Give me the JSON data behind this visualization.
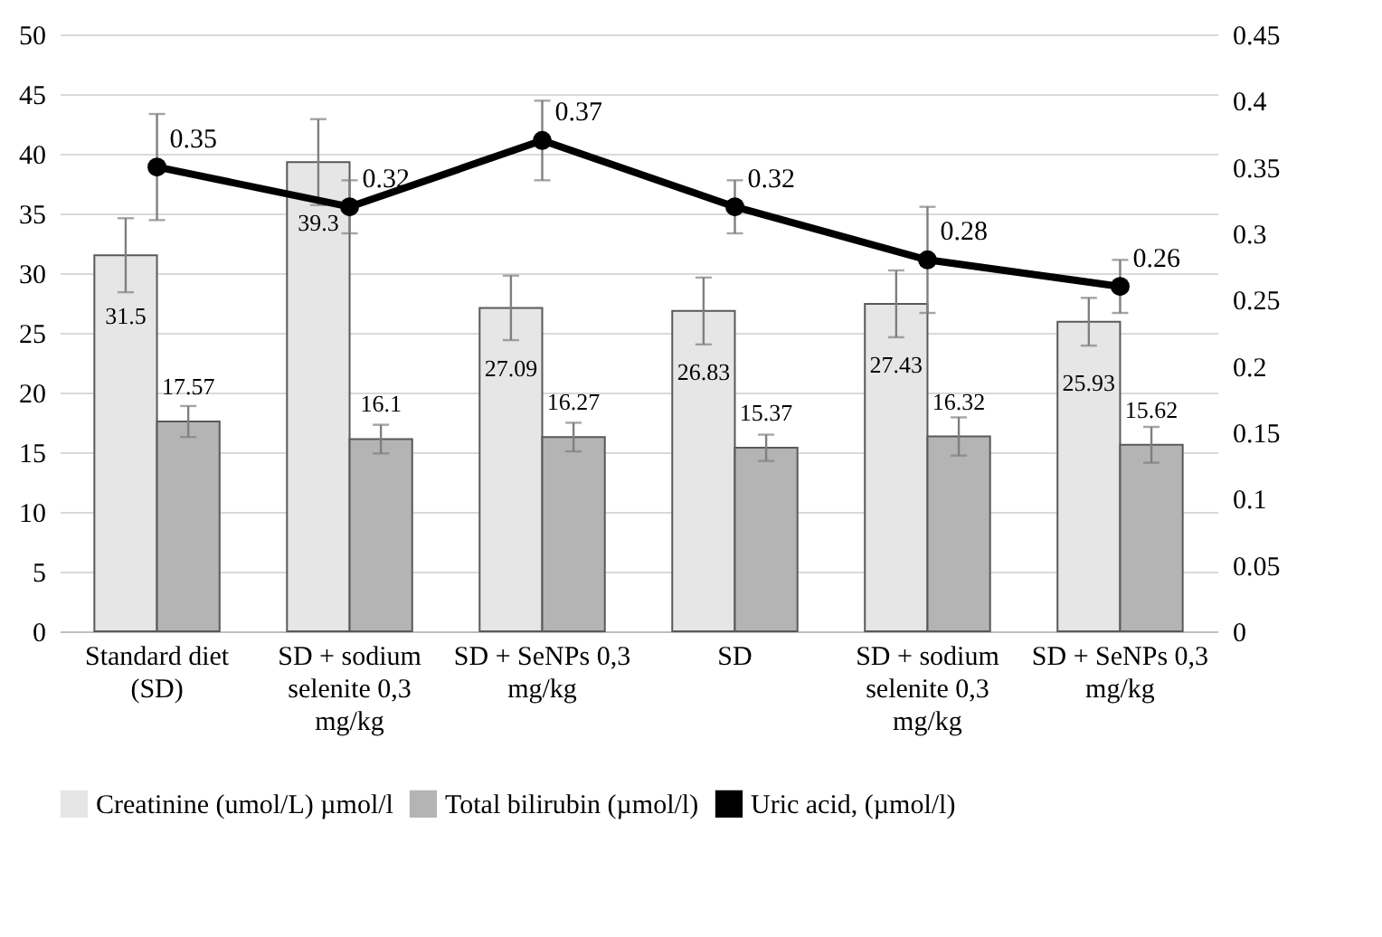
{
  "chart_data": {
    "type": "bar",
    "categories": [
      "Standard diet (SD)",
      "SD + sodium selenite 0,3 mg/kg",
      "SD + SeNPs 0,3 mg/kg",
      "SD",
      "SD + sodium selenite 0,3 mg/kg",
      "SD + SeNPs 0,3 mg/kg"
    ],
    "series": [
      {
        "name": "Creatinine (umol/L) µmol/l",
        "type": "bar",
        "color": "#e6e6e6",
        "values": [
          31.5,
          39.3,
          27.09,
          26.83,
          27.43,
          25.93
        ],
        "errors": [
          3.1,
          3.6,
          2.7,
          2.8,
          2.8,
          2.0
        ]
      },
      {
        "name": "Total bilirubin (µmol/l)",
        "type": "bar",
        "color": "#b4b4b4",
        "values": [
          17.57,
          16.1,
          16.27,
          15.37,
          16.32,
          15.62
        ],
        "errors": [
          1.3,
          1.2,
          1.2,
          1.1,
          1.6,
          1.5
        ]
      },
      {
        "name": "Uric acid, (µmol/l)",
        "type": "line",
        "axis": "y2",
        "color": "#000000",
        "marker": "circle",
        "values": [
          0.35,
          0.32,
          0.37,
          0.32,
          0.28,
          0.26
        ],
        "errors": [
          0.04,
          0.02,
          0.03,
          0.02,
          0.04,
          0.02
        ]
      }
    ],
    "ylim": [
      0,
      50
    ],
    "yticks": [
      0,
      5,
      10,
      15,
      20,
      25,
      30,
      35,
      40,
      45,
      50
    ],
    "y2lim": [
      0,
      0.45
    ],
    "y2ticks": [
      0,
      0.05,
      0.1,
      0.15,
      0.2,
      0.25,
      0.3,
      0.35,
      0.4,
      0.45
    ],
    "data_labels": true,
    "grid": "y",
    "legend": "bottom"
  }
}
